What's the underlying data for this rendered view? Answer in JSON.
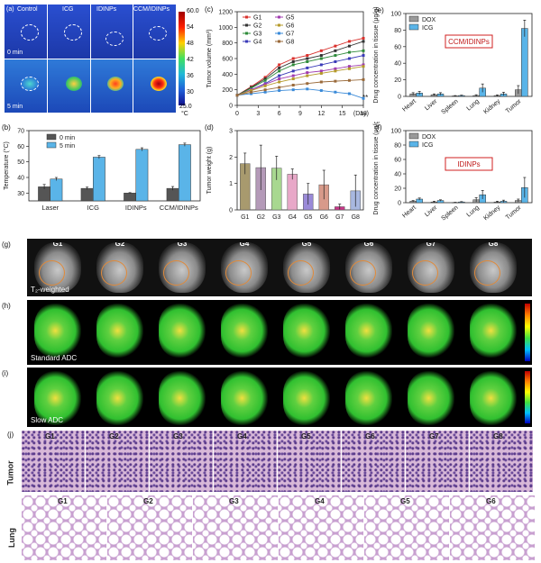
{
  "panel_a": {
    "label": "(a)",
    "groups": [
      "Control",
      "ICG",
      "IDINPs",
      "CCM/IDINPs"
    ],
    "rows": [
      "0 min",
      "5 min"
    ],
    "colorbar_ticks": [
      "60.0",
      "54",
      "48",
      "42",
      "36",
      "30",
      "25.0"
    ],
    "unit": "°C"
  },
  "panel_g": {
    "label": "(g)",
    "groups": [
      "G1",
      "G2",
      "G3",
      "G4",
      "G5",
      "G6",
      "G7",
      "G8"
    ],
    "caption": "T₂-weighted"
  },
  "panel_h": {
    "label": "(h)",
    "caption": "Standard ADC"
  },
  "panel_i": {
    "label": "(i)",
    "caption": "Slow ADC"
  },
  "panel_j": {
    "label": "(j)",
    "tumor_label": "Tumor",
    "lung_label": "Lung",
    "tumor_groups": [
      "G1",
      "G2",
      "G3",
      "G4",
      "G5",
      "G6",
      "G7",
      "G8"
    ],
    "lung_groups": [
      "G1",
      "G2",
      "G3",
      "G4",
      "G5",
      "G6"
    ]
  },
  "chart_data": [
    {
      "id": "b",
      "label": "(b)",
      "type": "bar",
      "categories": [
        "Laser",
        "ICG",
        "IDINPs",
        "CCM/IDINPs"
      ],
      "series": [
        {
          "name": "0 min",
          "values": [
            34,
            33,
            30,
            33
          ],
          "errors": [
            1.5,
            0.8,
            0.3,
            1.2
          ],
          "color": "#555555"
        },
        {
          "name": "5 min",
          "values": [
            39,
            53,
            58,
            61
          ],
          "errors": [
            1.0,
            1.0,
            1.0,
            1.0
          ],
          "color": "#5ab4e8"
        }
      ],
      "ylabel": "Temperature (°C)",
      "ylim": [
        25,
        70
      ],
      "yticks": [
        30,
        40,
        50,
        60,
        70
      ]
    },
    {
      "id": "c",
      "label": "(c)",
      "type": "line",
      "x": [
        0,
        2,
        4,
        6,
        8,
        10,
        12,
        14,
        16,
        18
      ],
      "series": [
        {
          "name": "G1",
          "values": [
            130,
            240,
            360,
            520,
            600,
            640,
            700,
            760,
            820,
            860
          ],
          "color": "#d9302c",
          "marker": "s"
        },
        {
          "name": "G2",
          "values": [
            130,
            230,
            340,
            480,
            560,
            600,
            640,
            700,
            760,
            820
          ],
          "color": "#333333",
          "marker": "o"
        },
        {
          "name": "G3",
          "values": [
            130,
            220,
            320,
            440,
            520,
            560,
            600,
            640,
            680,
            700
          ],
          "color": "#2e8b3a",
          "marker": "^"
        },
        {
          "name": "G4",
          "values": [
            130,
            200,
            280,
            380,
            440,
            480,
            520,
            560,
            600,
            640
          ],
          "color": "#3a3ab8",
          "marker": "v"
        },
        {
          "name": "G5",
          "values": [
            130,
            200,
            270,
            340,
            380,
            420,
            440,
            470,
            500,
            520
          ],
          "color": "#a03cb0",
          "marker": "<"
        },
        {
          "name": "G6",
          "values": [
            130,
            190,
            250,
            300,
            340,
            380,
            410,
            440,
            470,
            500
          ],
          "color": "#b59a2a",
          "marker": ">"
        },
        {
          "name": "G7",
          "values": [
            130,
            150,
            170,
            190,
            200,
            210,
            190,
            170,
            150,
            90
          ],
          "color": "#3a8ad8",
          "marker": "d"
        },
        {
          "name": "G8",
          "values": [
            130,
            170,
            200,
            230,
            260,
            280,
            300,
            310,
            320,
            330
          ],
          "color": "#9a6a3a",
          "marker": "p"
        }
      ],
      "xlabel": "(Day)",
      "ylabel": "Tumor volume (mm³)",
      "xlim": [
        0,
        18
      ],
      "ylim": [
        0,
        1200
      ],
      "xticks": [
        0,
        3,
        6,
        9,
        12,
        15,
        18
      ],
      "yticks": [
        0,
        200,
        400,
        600,
        800,
        1000,
        1200
      ],
      "annotation": "**"
    },
    {
      "id": "d",
      "label": "(d)",
      "type": "bar",
      "categories": [
        "G1",
        "G2",
        "G3",
        "G4",
        "G5",
        "G6",
        "G7",
        "G8"
      ],
      "values": [
        1.75,
        1.6,
        1.58,
        1.35,
        0.6,
        0.95,
        0.12,
        0.72
      ],
      "errors": [
        0.4,
        0.85,
        0.45,
        0.2,
        0.4,
        0.55,
        0.1,
        0.6
      ],
      "colors": [
        "#a89a6e",
        "#b49ab8",
        "#a8d890",
        "#e8a8c8",
        "#9a8ad8",
        "#d89a8a",
        "#c8388a",
        "#a8b8e0"
      ],
      "ylabel": "Tumor weight (g)",
      "ylim": [
        0,
        3
      ],
      "yticks": [
        0,
        1,
        2,
        3
      ]
    },
    {
      "id": "e",
      "label": "(e)",
      "type": "bar",
      "categories": [
        "Heart",
        "Liver",
        "Spleen",
        "Lung",
        "Kidney",
        "Tumor"
      ],
      "series": [
        {
          "name": "DOX",
          "values": [
            3,
            2,
            0.5,
            1,
            1,
            8
          ],
          "errors": [
            1.5,
            1,
            0.5,
            1,
            0.8,
            5
          ],
          "color": "#999999"
        },
        {
          "name": "ICG",
          "values": [
            4,
            3,
            1,
            10,
            3,
            82
          ],
          "errors": [
            2,
            1.5,
            0.5,
            5,
            2,
            10
          ],
          "color": "#5ab4e8"
        }
      ],
      "ylabel": "Drug concentration in tissue (μg/g)",
      "ylim": [
        0,
        100
      ],
      "yticks": [
        0,
        20,
        40,
        60,
        80,
        100
      ],
      "annotation": "CCM/IDINPs"
    },
    {
      "id": "f",
      "label": "(f)",
      "type": "bar",
      "categories": [
        "Heart",
        "Liver",
        "Spleen",
        "Lung",
        "Kidney",
        "Tumor"
      ],
      "series": [
        {
          "name": "DOX",
          "values": [
            2,
            1,
            0.3,
            4,
            1,
            3
          ],
          "errors": [
            1,
            1,
            0.3,
            3,
            1,
            2
          ],
          "color": "#999999"
        },
        {
          "name": "ICG",
          "values": [
            5,
            3,
            1,
            11,
            2,
            21
          ],
          "errors": [
            1.5,
            1,
            0.5,
            6,
            1.5,
            14
          ],
          "color": "#5ab4e8"
        }
      ],
      "ylabel": "Drug concentration in tissue (μg/g)",
      "ylim": [
        0,
        100
      ],
      "yticks": [
        0,
        20,
        40,
        60,
        80,
        100
      ],
      "annotation": "IDINPs"
    }
  ]
}
